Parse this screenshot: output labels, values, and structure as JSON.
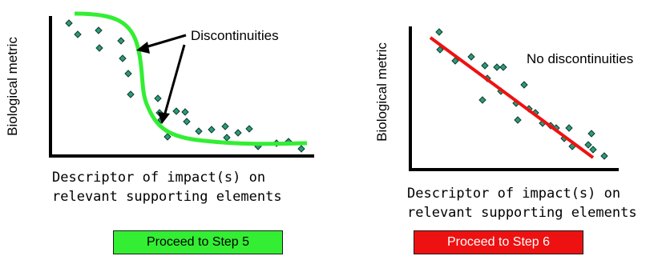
{
  "left_panel": {
    "ylabel": "Biological metric",
    "xlabel_lines": [
      "Descriptor of impact(s) on",
      "relevant supporting elements"
    ],
    "annotation": "Discontinuities",
    "curve_color": "#33ee33",
    "button": {
      "label": "Proceed to Step 5",
      "color": "#33ee33"
    }
  },
  "right_panel": {
    "ylabel": "Biological metric",
    "xlabel_lines": [
      "Descriptor of impact(s) on",
      "relevant supporting elements"
    ],
    "annotation": "No discontinuities",
    "line_color": "#ee1111",
    "button": {
      "label": "Proceed to Step 6",
      "color": "#ee1111"
    }
  },
  "marker_color": "#2e9a7a"
}
